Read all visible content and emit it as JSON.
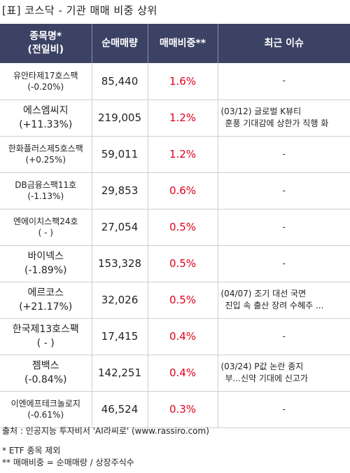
{
  "title": "[표] 코스닥 - 기관 매매 비중 상위",
  "headers": {
    "name_line1": "종목명*",
    "name_line2": "(전일비)",
    "volume": "순매매량",
    "ratio": "매매비중**",
    "issue": "최근 이슈"
  },
  "rows": [
    {
      "name": "유안타제17호스팩",
      "change": "(-0.20%)",
      "volume": "85,440",
      "ratio": "1.6%",
      "issue_line1": "-",
      "issue_line2": ""
    },
    {
      "name": "에스엠씨지",
      "change": "(+11.33%)",
      "volume": "219,005",
      "ratio": "1.2%",
      "issue_line1": "(03/12) 글로벌 K뷰티",
      "issue_line2": "훈풍 기대감에 상한가 직행 화"
    },
    {
      "name": "한화플러스제5호스팩",
      "change": "(+0.25%)",
      "volume": "59,011",
      "ratio": "1.2%",
      "issue_line1": "-",
      "issue_line2": ""
    },
    {
      "name": "DB금융스팩11호",
      "change": "(-1.13%)",
      "volume": "29,853",
      "ratio": "0.6%",
      "issue_line1": "-",
      "issue_line2": ""
    },
    {
      "name": "엔에이치스팩24호",
      "change": "( - )",
      "volume": "27,054",
      "ratio": "0.5%",
      "issue_line1": "-",
      "issue_line2": ""
    },
    {
      "name": "바이넥스",
      "change": "(-1.89%)",
      "volume": "153,328",
      "ratio": "0.5%",
      "issue_line1": "-",
      "issue_line2": ""
    },
    {
      "name": "에르코스",
      "change": "(+21.17%)",
      "volume": "32,026",
      "ratio": "0.5%",
      "issue_line1": "(04/07) 조기 대선 국면",
      "issue_line2": "진입 속 출산 장려 수혜주 ..."
    },
    {
      "name": "한국제13호스팩",
      "change": "( - )",
      "volume": "17,415",
      "ratio": "0.4%",
      "issue_line1": "-",
      "issue_line2": ""
    },
    {
      "name": "젬백스",
      "change": "(-0.84%)",
      "volume": "142,251",
      "ratio": "0.4%",
      "issue_line1": "(03/24) P값 논란 종지",
      "issue_line2": "부...신약 기대에 신고가"
    },
    {
      "name": "이엔에프테크놀로지",
      "change": "(-0.61%)",
      "volume": "46,524",
      "ratio": "0.3%",
      "issue_line1": "-",
      "issue_line2": ""
    }
  ],
  "footer": {
    "source": "출처 : 인공지능 투자비서 'AI라씨로' (www.rassiro.com)",
    "note1": "* ETF 종목 제외",
    "note2": "** 매매비중 = 순매매량 / 상장주식수"
  }
}
